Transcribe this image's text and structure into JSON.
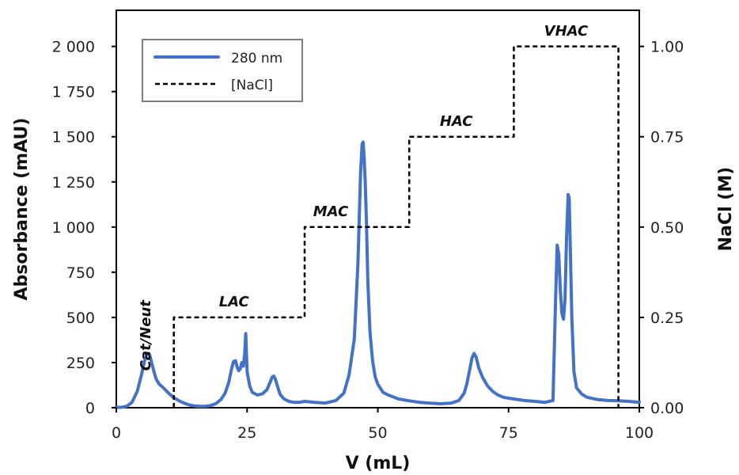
{
  "chart_data": {
    "type": "line",
    "title": "",
    "xlabel": "V (mL)",
    "ylabel": "Absorbance (mAU)",
    "y2label": "NaCl (M)",
    "xlim": [
      0,
      100
    ],
    "ylim": [
      0,
      2200
    ],
    "y2lim": [
      0,
      1.1
    ],
    "x_ticks": [
      0,
      25,
      50,
      75,
      100
    ],
    "x_tick_labels": [
      "0",
      "25",
      "50",
      "75",
      "100"
    ],
    "y_ticks": [
      0,
      250,
      500,
      750,
      1000,
      1250,
      1500,
      1750,
      2000
    ],
    "y_tick_labels": [
      "0",
      "250",
      "500",
      "750",
      "1 000",
      "1 250",
      "1 500",
      "1 750",
      "2 000"
    ],
    "y2_ticks": [
      0,
      0.25,
      0.5,
      0.75,
      1.0
    ],
    "y2_tick_labels": [
      "0.00",
      "0.25",
      "0.50",
      "0.75",
      "1.00"
    ],
    "grid": false,
    "legend_position": "top-left",
    "legend": [
      "280 nm",
      "[NaCl]"
    ],
    "series": [
      {
        "name": "280 nm",
        "axis": "left",
        "color": "#4472C4",
        "style": "solid",
        "x": [
          0,
          1,
          2,
          3,
          4,
          4.8,
          5.4,
          5.8,
          6.1,
          6.4,
          6.8,
          7.2,
          7.6,
          8.2,
          9,
          10,
          11,
          12,
          13,
          14,
          15,
          16,
          17,
          18,
          19,
          20,
          20.8,
          21.5,
          22,
          22.4,
          22.8,
          23.1,
          23.4,
          23.7,
          24,
          24.3,
          24.55,
          24.75,
          25,
          25.5,
          26,
          27,
          28,
          28.8,
          29.4,
          29.8,
          30.1,
          30.4,
          30.8,
          31.3,
          32,
          33,
          34,
          35,
          36,
          38,
          40,
          42,
          43.5,
          44.5,
          45.5,
          46.2,
          46.7,
          47,
          47.2,
          47.4,
          47.6,
          47.8,
          48.1,
          48.5,
          49,
          49.5,
          50,
          51,
          52,
          54,
          56,
          58,
          60,
          62,
          64,
          65.5,
          66.5,
          67,
          67.5,
          68,
          68.4,
          68.8,
          69.3,
          70,
          71,
          72,
          73,
          74,
          76,
          78,
          80,
          82,
          83.5,
          84,
          84.3,
          84.6,
          84.9,
          85.2,
          85.5,
          85.8,
          86.1,
          86.4,
          86.6,
          86.8,
          87.1,
          87.5,
          88,
          89,
          90,
          92,
          94,
          96,
          98,
          100
        ],
        "y": [
          2,
          2,
          8,
          30,
          90,
          180,
          260,
          295,
          300,
          290,
          245,
          200,
          160,
          130,
          110,
          80,
          55,
          38,
          25,
          15,
          10,
          8,
          8,
          12,
          22,
          45,
          80,
          140,
          210,
          255,
          260,
          225,
          205,
          215,
          250,
          230,
          300,
          410,
          200,
          120,
          85,
          70,
          78,
          100,
          140,
          170,
          175,
          160,
          120,
          75,
          50,
          35,
          30,
          30,
          35,
          30,
          26,
          40,
          80,
          180,
          380,
          800,
          1300,
          1460,
          1470,
          1380,
          1250,
          1050,
          700,
          420,
          260,
          170,
          130,
          85,
          70,
          48,
          38,
          30,
          25,
          22,
          25,
          40,
          80,
          130,
          200,
          275,
          300,
          280,
          220,
          170,
          120,
          90,
          70,
          58,
          48,
          40,
          35,
          30,
          40,
          600,
          900,
          850,
          650,
          520,
          490,
          600,
          950,
          1180,
          1160,
          900,
          500,
          200,
          110,
          75,
          58,
          45,
          40,
          38,
          35,
          30
        ]
      },
      {
        "name": "[NaCl]",
        "axis": "right",
        "color": "#000000",
        "style": "dashed",
        "x": [
          11,
          11,
          36,
          36,
          56,
          56,
          76,
          76,
          96,
          96
        ],
        "y": [
          0,
          0.25,
          0.25,
          0.5,
          0.5,
          0.75,
          0.75,
          1.0,
          1.0,
          0
        ]
      }
    ],
    "annotations": [
      {
        "text": "Cat/Neut",
        "x": 6.5,
        "y2": 0.2,
        "rotation": -90
      },
      {
        "text": "LAC",
        "x": 22.5,
        "y2": 0.28
      },
      {
        "text": "MAC",
        "x": 41,
        "y2": 0.53
      },
      {
        "text": "HAC",
        "x": 65,
        "y2": 0.78
      },
      {
        "text": "VHAC",
        "x": 86,
        "y2": 1.03
      }
    ]
  }
}
